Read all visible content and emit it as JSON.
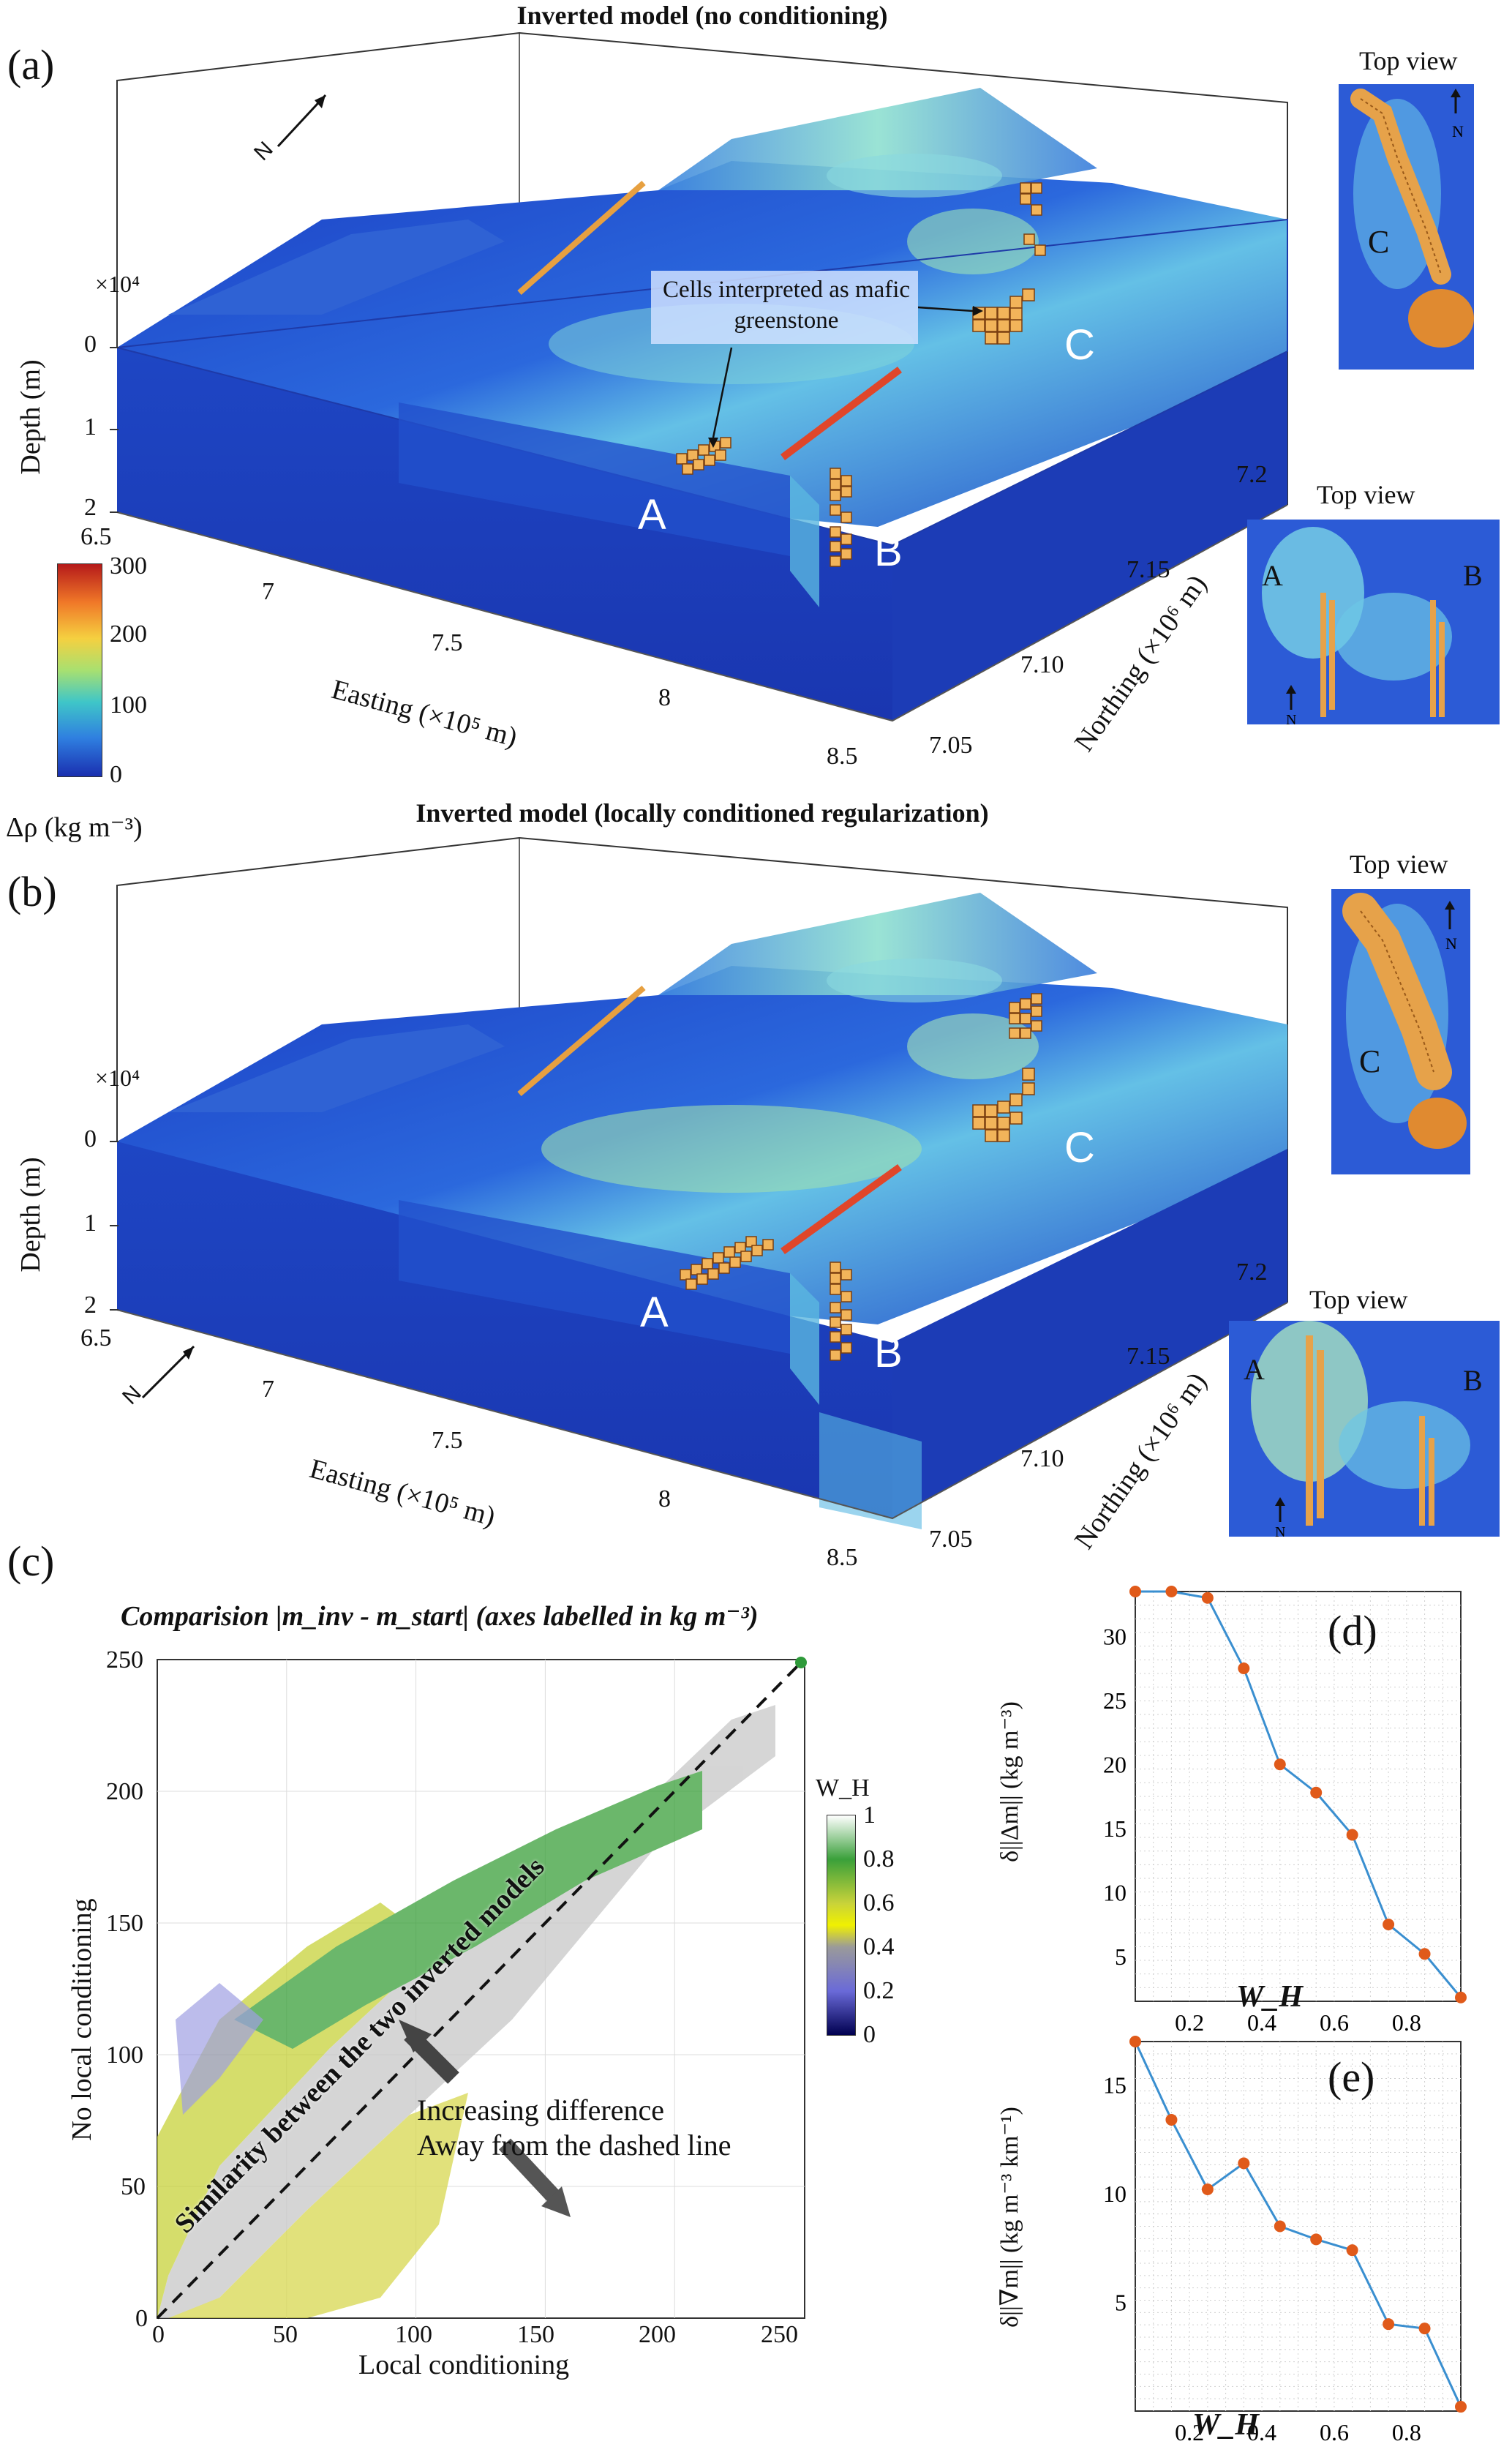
{
  "panel_a": {
    "letter": "(a)",
    "title": "Inverted model (no conditioning)",
    "depth_scale": "×10⁴",
    "depth_label": "Depth (m)",
    "depth_ticks": [
      "0",
      "1",
      "2"
    ],
    "easting_ticks": [
      "6.5",
      "7",
      "7.5",
      "8",
      "8.5"
    ],
    "easting_label": "Easting (×10⁵ m)",
    "northing_ticks": [
      "7.05",
      "7.10",
      "7.15",
      "7.2"
    ],
    "northing_label": "Northing (×10⁶ m)",
    "north_arrow": "N",
    "annotation": "Cells interpreted as mafic greenstone",
    "labels": [
      "A",
      "B",
      "C"
    ],
    "colorbar_ticks": [
      "300",
      "200",
      "100",
      "0"
    ],
    "colorbar_label": "Δρ (kg m⁻³)",
    "topview_title": "Top view"
  },
  "panel_b": {
    "letter": "(b)",
    "title": "Inverted model (locally conditioned regularization)",
    "depth_scale": "×10⁴",
    "depth_label": "Depth (m)",
    "depth_ticks": [
      "0",
      "1",
      "2"
    ],
    "easting_ticks": [
      "6.5",
      "7",
      "7.5",
      "8",
      "8.5"
    ],
    "easting_label": "Easting (×10⁵ m)",
    "northing_ticks": [
      "7.05",
      "7.10",
      "7.15",
      "7.2"
    ],
    "northing_label": "Northing (×10⁶ m)",
    "north_arrow": "N",
    "labels": [
      "A",
      "B",
      "C"
    ],
    "topview_title": "Top view"
  },
  "panel_c": {
    "letter": "(c)",
    "title": "Comparision |m_inv - m_start| (axes labelled in kg m⁻³)",
    "xlabel": "Local conditioning",
    "ylabel": "No local conditioning",
    "x_ticks": [
      "0",
      "50",
      "100",
      "150",
      "200",
      "250"
    ],
    "y_ticks": [
      "0",
      "50",
      "100",
      "150",
      "200",
      "250"
    ],
    "diag_text": "Similarity between the two inverted models",
    "note_line1": "Increasing difference",
    "note_line2": "Away from the dashed line",
    "colorbar_title": "W_H",
    "colorbar_ticks": [
      "1",
      "0.8",
      "0.6",
      "0.4",
      "0.2",
      "0"
    ]
  },
  "chart_data": [
    {
      "type": "line",
      "panel": "(d)",
      "xlabel": "W_H",
      "ylabel": "δ||Δm|| (kg m⁻³)",
      "x": [
        0.05,
        0.15,
        0.25,
        0.35,
        0.45,
        0.55,
        0.65,
        0.75,
        0.85,
        0.95
      ],
      "values": [
        33.5,
        33.5,
        33.0,
        27.5,
        20.0,
        17.8,
        14.5,
        7.5,
        5.2,
        1.8
      ],
      "xlim": [
        0.05,
        0.95
      ],
      "ylim": [
        1.5,
        33.5
      ],
      "x_ticks": [
        "0.2",
        "0.4",
        "0.6",
        "0.8"
      ],
      "y_ticks": [
        "5",
        "10",
        "15",
        "20",
        "25",
        "30"
      ],
      "grid": true,
      "line_color": "#3a8fd0",
      "marker_color": "#e05a1a"
    },
    {
      "type": "line",
      "panel": "(e)",
      "xlabel": "W_H",
      "ylabel": "δ||∇m|| (kg m⁻³ km⁻¹)",
      "x": [
        0.05,
        0.15,
        0.25,
        0.35,
        0.45,
        0.55,
        0.65,
        0.75,
        0.85,
        0.95
      ],
      "values": [
        17.0,
        13.4,
        10.2,
        11.4,
        8.5,
        7.9,
        7.4,
        4.0,
        3.8,
        0.2
      ],
      "xlim": [
        0.05,
        0.95
      ],
      "ylim": [
        0,
        17
      ],
      "x_ticks": [
        "0.2",
        "0.4",
        "0.6",
        "0.8"
      ],
      "y_ticks": [
        "5",
        "10",
        "15"
      ],
      "grid": true,
      "line_color": "#3a8fd0",
      "marker_color": "#e05a1a"
    }
  ]
}
